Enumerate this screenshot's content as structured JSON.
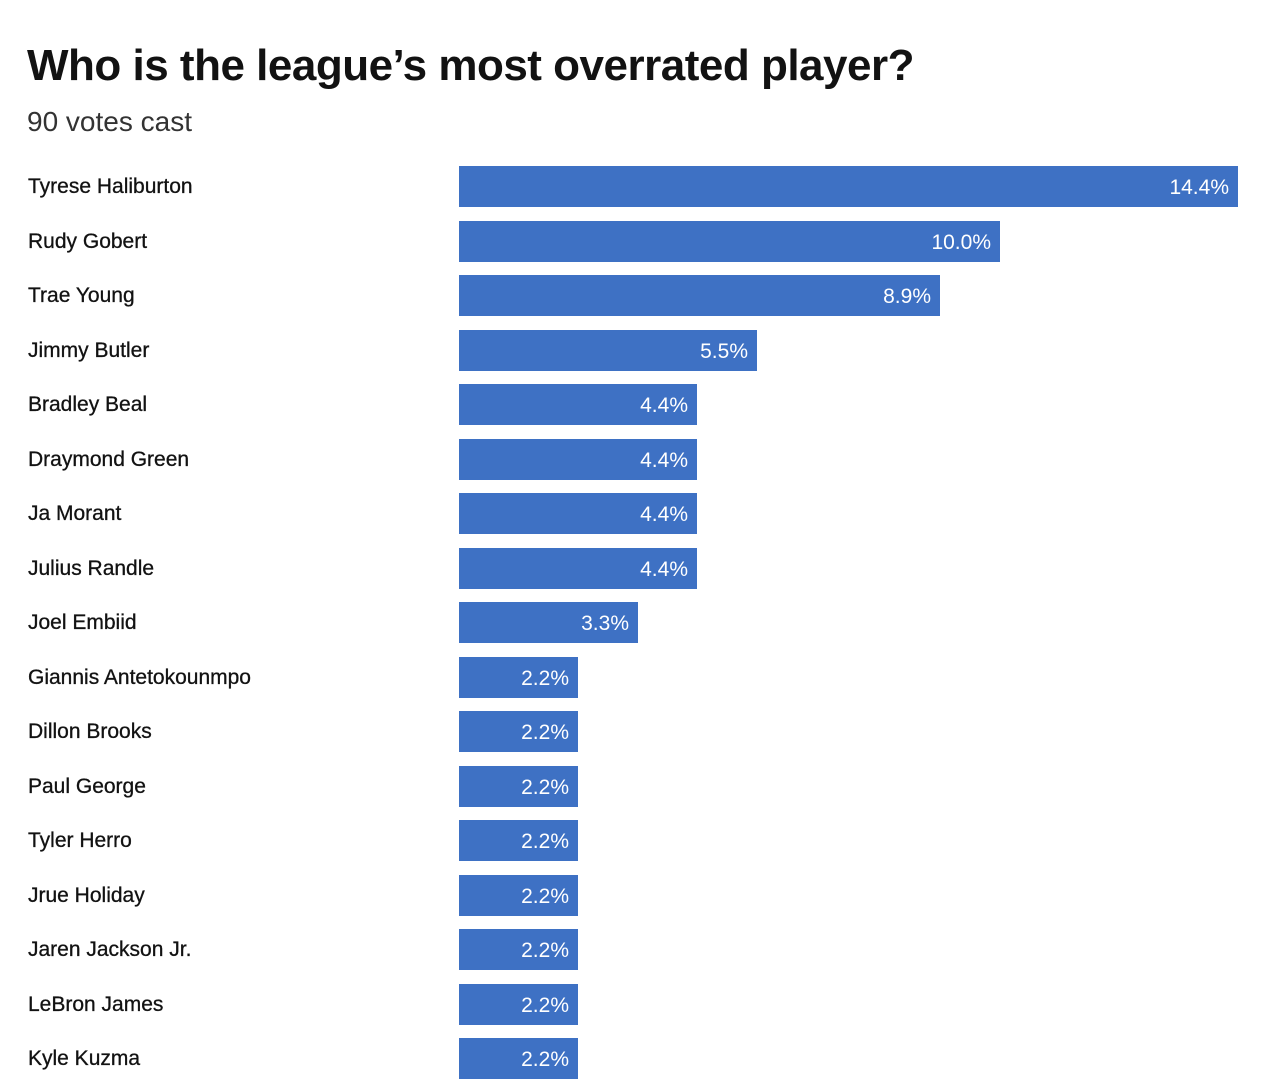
{
  "chart_data": {
    "type": "bar",
    "orientation": "horizontal",
    "title": "Who is the league’s most overrated player?",
    "subtitle": "90 votes cast",
    "bar_color": "#3e71c4",
    "value_label_color": "#ffffff",
    "xlim": [
      0,
      14.4
    ],
    "categories": [
      "Tyrese Haliburton",
      "Rudy Gobert",
      "Trae Young",
      "Jimmy Butler",
      "Bradley Beal",
      "Draymond Green",
      "Ja Morant",
      "Julius Randle",
      "Joel Embiid",
      "Giannis Antetokounmpo",
      "Dillon Brooks",
      "Paul George",
      "Tyler Herro",
      "Jrue Holiday",
      "Jaren Jackson Jr.",
      "LeBron James",
      "Kyle Kuzma"
    ],
    "values": [
      14.4,
      10.0,
      8.9,
      5.5,
      4.4,
      4.4,
      4.4,
      4.4,
      3.3,
      2.2,
      2.2,
      2.2,
      2.2,
      2.2,
      2.2,
      2.2,
      2.2
    ],
    "value_labels": [
      "14.4%",
      "10.0%",
      "8.9%",
      "5.5%",
      "4.4%",
      "4.4%",
      "4.4%",
      "4.4%",
      "3.3%",
      "2.2%",
      "2.2%",
      "2.2%",
      "2.2%",
      "2.2%",
      "2.2%",
      "2.2%",
      "2.2%"
    ]
  }
}
